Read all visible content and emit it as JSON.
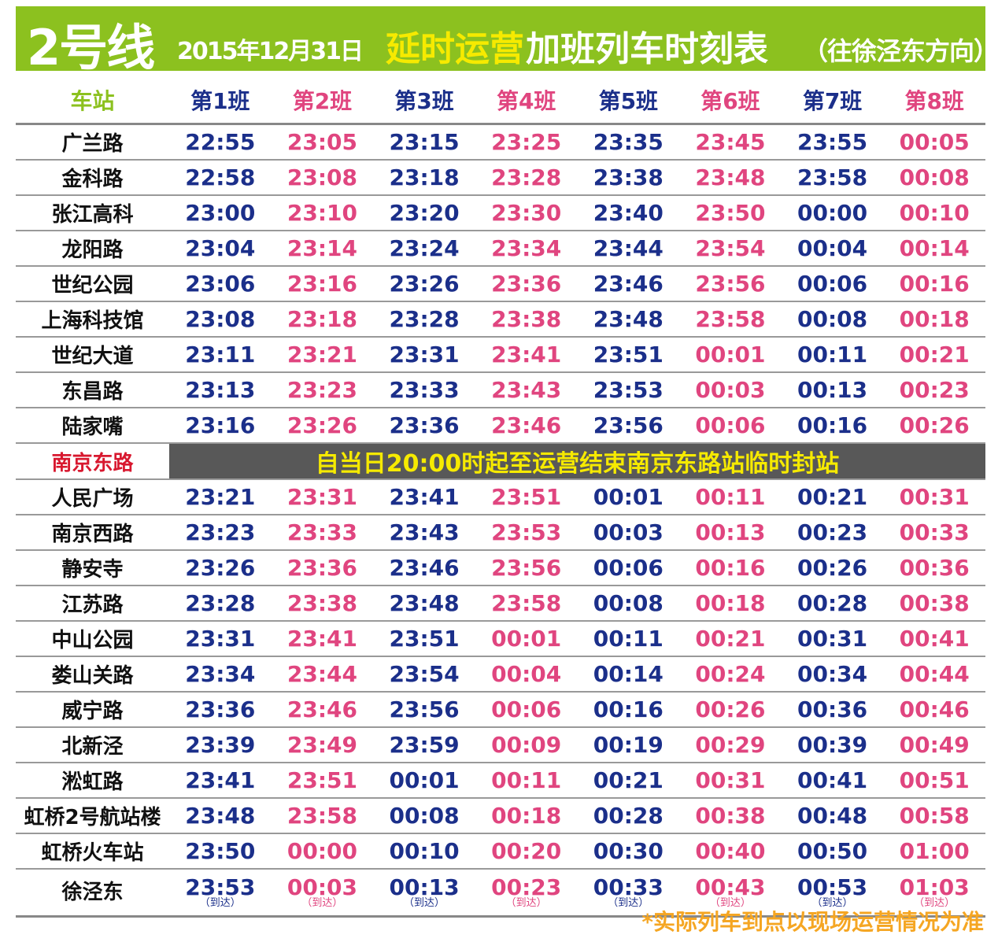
{
  "header": {
    "line": "2号线",
    "date": "2015年12月31日",
    "title_highlight": "延时运营",
    "title_rest": "加班列车时刻表",
    "direction": "（往徐泾东方向）"
  },
  "colors": {
    "banner": "#8cc11f",
    "odd_train": "#1b2f8a",
    "even_train": "#e0457f",
    "highlight": "#f6ea00",
    "closed_station": "#d8182f",
    "note": "#f5a623"
  },
  "table": {
    "station_header": "车站",
    "trains": [
      "第1班",
      "第2班",
      "第3班",
      "第4班",
      "第5班",
      "第6班",
      "第7班",
      "第8班"
    ],
    "rows": [
      {
        "station": "广兰路",
        "times": [
          "22:55",
          "23:05",
          "23:15",
          "23:25",
          "23:35",
          "23:45",
          "23:55",
          "00:05"
        ]
      },
      {
        "station": "金科路",
        "times": [
          "22:58",
          "23:08",
          "23:18",
          "23:28",
          "23:38",
          "23:48",
          "23:58",
          "00:08"
        ]
      },
      {
        "station": "张江高科",
        "times": [
          "23:00",
          "23:10",
          "23:20",
          "23:30",
          "23:40",
          "23:50",
          "00:00",
          "00:10"
        ]
      },
      {
        "station": "龙阳路",
        "times": [
          "23:04",
          "23:14",
          "23:24",
          "23:34",
          "23:44",
          "23:54",
          "00:04",
          "00:14"
        ]
      },
      {
        "station": "世纪公园",
        "times": [
          "23:06",
          "23:16",
          "23:26",
          "23:36",
          "23:46",
          "23:56",
          "00:06",
          "00:16"
        ]
      },
      {
        "station": "上海科技馆",
        "times": [
          "23:08",
          "23:18",
          "23:28",
          "23:38",
          "23:48",
          "23:58",
          "00:08",
          "00:18"
        ]
      },
      {
        "station": "世纪大道",
        "times": [
          "23:11",
          "23:21",
          "23:31",
          "23:41",
          "23:51",
          "00:01",
          "00:11",
          "00:21"
        ]
      },
      {
        "station": "东昌路",
        "times": [
          "23:13",
          "23:23",
          "23:33",
          "23:43",
          "23:53",
          "00:03",
          "00:13",
          "00:23"
        ]
      },
      {
        "station": "陆家嘴",
        "times": [
          "23:16",
          "23:26",
          "23:36",
          "23:46",
          "23:56",
          "00:06",
          "00:16",
          "00:26"
        ]
      },
      {
        "station": "南京东路",
        "closed": "自当日20:00时起至运营结束南京东路站临时封站"
      },
      {
        "station": "人民广场",
        "times": [
          "23:21",
          "23:31",
          "23:41",
          "23:51",
          "00:01",
          "00:11",
          "00:21",
          "00:31"
        ]
      },
      {
        "station": "南京西路",
        "times": [
          "23:23",
          "23:33",
          "23:43",
          "23:53",
          "00:03",
          "00:13",
          "00:23",
          "00:33"
        ]
      },
      {
        "station": "静安寺",
        "times": [
          "23:26",
          "23:36",
          "23:46",
          "23:56",
          "00:06",
          "00:16",
          "00:26",
          "00:36"
        ]
      },
      {
        "station": "江苏路",
        "times": [
          "23:28",
          "23:38",
          "23:48",
          "23:58",
          "00:08",
          "00:18",
          "00:28",
          "00:38"
        ]
      },
      {
        "station": "中山公园",
        "times": [
          "23:31",
          "23:41",
          "23:51",
          "00:01",
          "00:11",
          "00:21",
          "00:31",
          "00:41"
        ]
      },
      {
        "station": "娄山关路",
        "times": [
          "23:34",
          "23:44",
          "23:54",
          "00:04",
          "00:14",
          "00:24",
          "00:34",
          "00:44"
        ]
      },
      {
        "station": "威宁路",
        "times": [
          "23:36",
          "23:46",
          "23:56",
          "00:06",
          "00:16",
          "00:26",
          "00:36",
          "00:46"
        ]
      },
      {
        "station": "北新泾",
        "times": [
          "23:39",
          "23:49",
          "23:59",
          "00:09",
          "00:19",
          "00:29",
          "00:39",
          "00:49"
        ]
      },
      {
        "station": "淞虹路",
        "times": [
          "23:41",
          "23:51",
          "00:01",
          "00:11",
          "00:21",
          "00:31",
          "00:41",
          "00:51"
        ]
      },
      {
        "station": "虹桥2号航站楼",
        "times": [
          "23:48",
          "23:58",
          "00:08",
          "00:18",
          "00:28",
          "00:38",
          "00:48",
          "00:58"
        ]
      },
      {
        "station": "虹桥火车站",
        "times": [
          "23:50",
          "00:00",
          "00:10",
          "00:20",
          "00:30",
          "00:40",
          "00:50",
          "01:00"
        ]
      },
      {
        "station": "徐泾东",
        "times": [
          "23:53",
          "00:03",
          "00:13",
          "00:23",
          "00:33",
          "00:43",
          "00:53",
          "01:03"
        ],
        "arrival_label": "（到达）"
      }
    ]
  },
  "note": "*实际列车到点以现场运营情况为准"
}
